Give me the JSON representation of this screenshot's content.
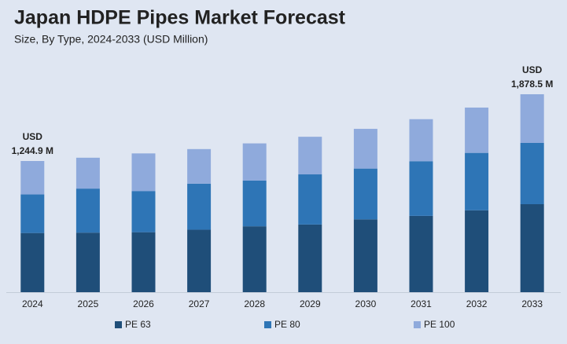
{
  "chart_data": {
    "type": "stacked-bar",
    "title": "Japan HDPE Pipes Market Forecast",
    "subtitle": "Size, By Type, 2024-2033 (USD Million)",
    "categories": [
      "2024",
      "2025",
      "2026",
      "2027",
      "2028",
      "2029",
      "2030",
      "2031",
      "2032",
      "2033"
    ],
    "series": [
      {
        "name": "PE 63",
        "color": "#1f4e79",
        "values": [
          561.5,
          565,
          569,
          593,
          625,
          642,
          691,
          724,
          777,
          834.9
        ]
      },
      {
        "name": "PE 80",
        "color": "#2e75b6",
        "values": [
          366.2,
          418,
          391,
          437,
          434,
          476,
          482,
          519,
          545,
          581.4
        ]
      },
      {
        "name": "PE 100",
        "color": "#8faadc",
        "values": [
          317.2,
          293,
          357,
          328,
          353,
          357,
          377,
          399,
          430,
          462.2
        ]
      }
    ],
    "annotations": [
      {
        "category": "2024",
        "lines": [
          "USD",
          "1,244.9 M"
        ]
      },
      {
        "category": "2033",
        "lines": [
          "USD",
          "1,878.5 M"
        ]
      }
    ],
    "legend": "bottom"
  }
}
